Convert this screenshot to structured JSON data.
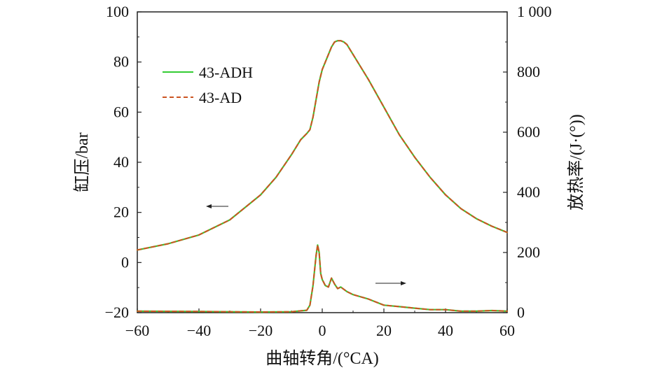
{
  "chart_data": {
    "type": "line",
    "xlabel": "曲轴转角/(°CA)",
    "ylabel_left": "缸压/bar",
    "ylabel_right": "放热率/(J·(°))",
    "xlim": [
      -60,
      60
    ],
    "ylim_left": [
      -20,
      100
    ],
    "ylim_right": [
      0,
      1000
    ],
    "xticks": [
      "−60",
      "−40",
      "−20",
      "0",
      "20",
      "40",
      "60"
    ],
    "yticks_left": [
      "−20",
      "0",
      "20",
      "40",
      "60",
      "80",
      "100"
    ],
    "yticks_right": [
      "0",
      "200",
      "400",
      "600",
      "800",
      "1 000"
    ],
    "legend": {
      "placement": "upper-left"
    },
    "series": [
      {
        "name": "43-ADH",
        "axis": "left",
        "color": "#33cc33",
        "style": "solid",
        "x": [
          -60,
          -50,
          -40,
          -30,
          -20,
          -15,
          -10,
          -7,
          -5,
          -4,
          -3,
          -2,
          -1,
          0,
          1,
          2,
          3,
          4,
          5,
          6,
          7,
          8,
          10,
          15,
          20,
          25,
          30,
          35,
          40,
          45,
          50,
          55,
          60
        ],
        "y": [
          5,
          7.5,
          11,
          17,
          27,
          34,
          43,
          49,
          51.5,
          53,
          58,
          65,
          72,
          77,
          80,
          83,
          86,
          88,
          88.5,
          88.5,
          88,
          87,
          83,
          73,
          62,
          51,
          42,
          34,
          27,
          21.5,
          17.5,
          14.5,
          12
        ]
      },
      {
        "name": "43-AD",
        "axis": "left",
        "color": "#cc5522",
        "style": "dashed",
        "x": [
          -60,
          -50,
          -40,
          -30,
          -20,
          -15,
          -10,
          -7,
          -5,
          -4,
          -3,
          -2,
          -1,
          0,
          1,
          2,
          3,
          4,
          5,
          6,
          7,
          8,
          10,
          15,
          20,
          25,
          30,
          35,
          40,
          45,
          50,
          55,
          60
        ],
        "y": [
          5,
          7.5,
          11,
          17,
          27,
          34,
          43,
          49,
          51.5,
          53,
          58,
          65,
          72,
          77,
          80,
          83,
          86,
          88,
          88.5,
          88.5,
          88,
          87,
          83,
          73,
          62,
          51,
          42,
          34,
          27,
          21.5,
          17.5,
          14.5,
          12
        ]
      },
      {
        "name": "43-ADH",
        "axis": "right",
        "color": "#33cc33",
        "style": "solid",
        "x": [
          -60,
          -40,
          -20,
          -10,
          -5,
          -4,
          -3,
          -2,
          -1.5,
          -1,
          -0.5,
          0,
          1,
          2,
          3,
          4,
          5,
          6,
          8,
          10,
          15,
          20,
          25,
          30,
          35,
          40,
          45,
          50,
          55,
          60
        ],
        "y": [
          5,
          4,
          2,
          3,
          8,
          25,
          90,
          190,
          225,
          200,
          130,
          110,
          90,
          85,
          115,
          95,
          80,
          85,
          70,
          60,
          45,
          25,
          20,
          15,
          10,
          10,
          5,
          5,
          7,
          5
        ]
      },
      {
        "name": "43-AD",
        "axis": "right",
        "color": "#cc5522",
        "style": "dashed",
        "x": [
          -60,
          -40,
          -20,
          -10,
          -5,
          -4,
          -3,
          -2,
          -1.5,
          -1,
          -0.5,
          0,
          1,
          2,
          3,
          4,
          5,
          6,
          8,
          10,
          15,
          20,
          25,
          30,
          35,
          40,
          45,
          50,
          55,
          60
        ],
        "y": [
          5,
          4,
          2,
          3,
          8,
          25,
          90,
          190,
          225,
          200,
          130,
          110,
          90,
          85,
          115,
          95,
          80,
          85,
          70,
          60,
          45,
          25,
          20,
          15,
          10,
          10,
          5,
          5,
          7,
          5
        ]
      }
    ]
  }
}
